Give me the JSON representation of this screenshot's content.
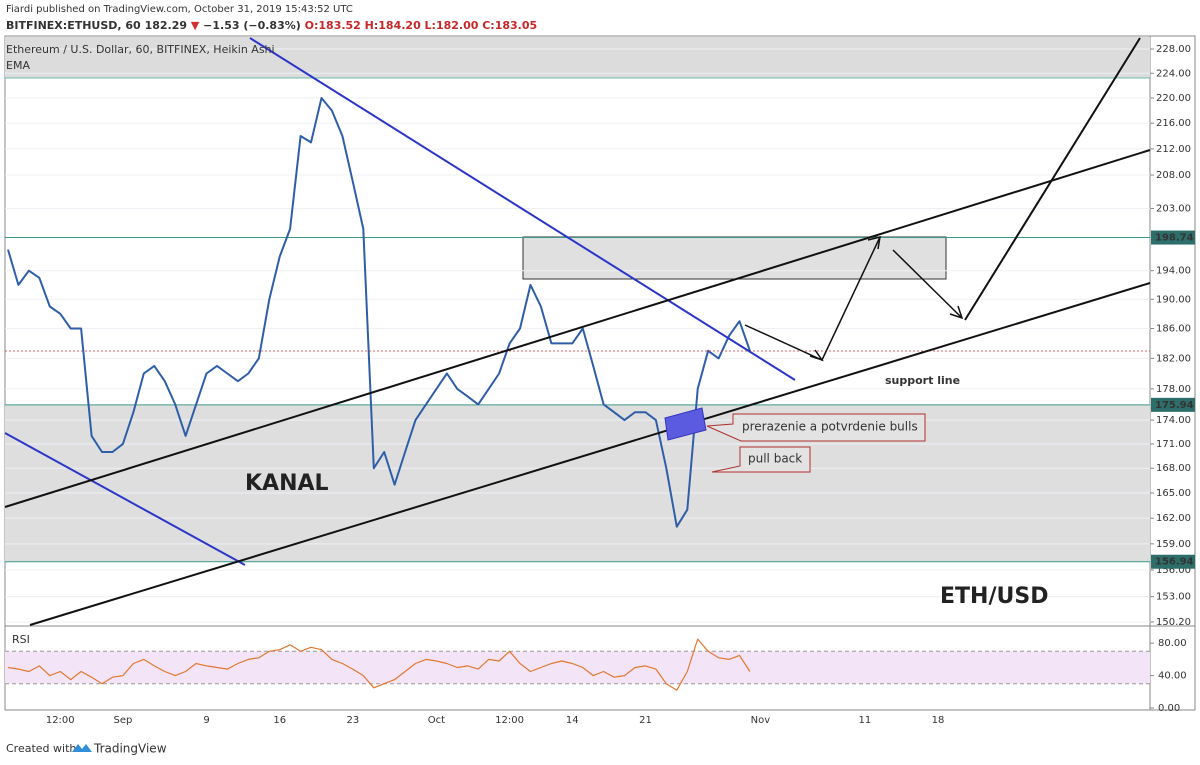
{
  "header": {
    "published": "Fiardi published on TradingView.com, October 31, 2019 15:43:52 UTC",
    "symbol": [
      "BITFINEX:ETHUSD, 60",
      "182.29",
      "▼",
      "−1.53 (−0.83%)",
      "O:183.52 H:184.20 L:182.00 C:183.05"
    ]
  },
  "footer": {
    "created": "Created with",
    "brand": "TradingView"
  },
  "chart_data": [
    {
      "type": "line",
      "log": true,
      "grid": true,
      "title": "Ethereum / U.S. Dollar, 60, BITFINEX, Heikin Ashi",
      "indicator": "EMA",
      "categories": [
        null,
        null,
        null,
        null,
        null,
        "12:00",
        null,
        null,
        null,
        null,
        null,
        "Sep",
        null,
        null,
        null,
        null,
        null,
        null,
        null,
        "9",
        null,
        null,
        null,
        null,
        null,
        null,
        "16",
        null,
        null,
        null,
        null,
        null,
        null,
        "23",
        null,
        null,
        null,
        null,
        null,
        null,
        null,
        "Oct",
        null,
        null,
        null,
        null,
        null,
        null,
        "12:00",
        null,
        null,
        null,
        null,
        null,
        "14",
        null,
        null,
        null,
        null,
        null,
        null,
        "21",
        null,
        null,
        null,
        null,
        null,
        null,
        null,
        null,
        null,
        null,
        "Nov",
        null,
        null,
        null,
        null,
        null,
        null,
        null,
        null,
        null,
        "11",
        null,
        null,
        null,
        null,
        null,
        null,
        "18",
        null,
        null,
        null,
        null,
        null,
        null,
        null,
        null,
        null,
        null,
        null,
        null,
        null,
        null,
        null,
        null,
        null,
        null,
        null,
        null
      ],
      "series": [
        {
          "name": "Ethereum / U.S. Dollar, 60, BITFINEX, Heikin Ashi",
          "color": "#2f5ea8",
          "values": [
            197,
            192,
            194,
            193,
            189,
            188,
            186,
            186,
            172,
            170,
            170,
            171,
            175,
            180,
            181,
            179,
            176,
            172,
            176,
            180,
            181,
            180,
            179,
            180,
            182,
            190,
            196,
            200,
            214,
            213,
            220,
            218,
            214,
            207,
            200,
            168,
            170,
            166,
            170,
            174,
            176,
            178,
            180,
            178,
            177,
            176,
            178,
            180,
            184,
            186,
            192,
            189,
            184,
            184,
            184,
            186,
            181,
            176,
            175,
            174,
            175,
            175,
            174,
            168,
            161,
            163,
            178,
            183,
            182,
            185,
            187,
            183,
            null,
            null,
            null,
            null,
            null,
            null,
            null,
            null,
            null,
            null,
            null,
            null,
            null,
            null,
            null,
            null,
            null,
            null,
            null,
            null,
            null,
            null,
            null,
            null,
            null,
            null,
            null,
            null,
            null,
            null,
            null,
            null,
            null,
            null,
            null,
            null,
            null,
            null
          ]
        }
      ],
      "ylim": [
        150.2,
        228
      ],
      "yticks": [
        {
          "value": 228,
          "label": "228.00"
        },
        {
          "value": 224,
          "label": "224.00"
        },
        {
          "value": 220,
          "label": "220.00"
        },
        {
          "value": 216,
          "label": "216.00"
        },
        {
          "value": 212,
          "label": "212.00"
        },
        {
          "value": 208,
          "label": "208.00"
        },
        {
          "value": 203,
          "label": "203.00"
        },
        {
          "value": 194,
          "label": "194.00"
        },
        {
          "value": 190,
          "label": "190.00"
        },
        {
          "value": 186,
          "label": "186.00"
        },
        {
          "value": 182,
          "label": "182.00"
        },
        {
          "value": 178,
          "label": "178.00"
        },
        {
          "value": 174,
          "label": "174.00"
        },
        {
          "value": 171,
          "label": "171.00"
        },
        {
          "value": 168,
          "label": "168.00"
        },
        {
          "value": 165,
          "label": "165.00"
        },
        {
          "value": 162,
          "label": "162.00"
        },
        {
          "value": 159,
          "label": "159.00"
        },
        {
          "value": 156,
          "label": "156.00"
        },
        {
          "value": 153,
          "label": "153.00"
        },
        {
          "value": 150.2,
          "label": "150.20"
        }
      ],
      "price_levels": [
        198.74,
        175.94,
        156.94
      ],
      "annotations": [
        "KANAL",
        "ETH/USD",
        "support line",
        "prerazenie a potvrdenie bulls",
        "pull back"
      ]
    },
    {
      "type": "line",
      "title": "RSI",
      "color": "#e3782f",
      "values": [
        50,
        48,
        45,
        52,
        40,
        45,
        35,
        45,
        38,
        30,
        38,
        40,
        55,
        60,
        52,
        45,
        40,
        45,
        55,
        52,
        50,
        48,
        55,
        60,
        62,
        70,
        72,
        78,
        70,
        75,
        72,
        60,
        55,
        48,
        40,
        25,
        30,
        35,
        45,
        55,
        60,
        58,
        55,
        50,
        52,
        48,
        60,
        58,
        70,
        55,
        45,
        50,
        55,
        58,
        55,
        50,
        40,
        45,
        38,
        40,
        50,
        52,
        48,
        30,
        22,
        45,
        85,
        70,
        62,
        60,
        65,
        45
      ],
      "ylim": [
        0,
        100
      ],
      "yticks": [
        {
          "value": 0,
          "label": "0.00"
        },
        {
          "value": 40,
          "label": "40.00"
        },
        {
          "value": 80,
          "label": "80.00"
        }
      ],
      "bands": [
        30,
        70
      ]
    }
  ]
}
